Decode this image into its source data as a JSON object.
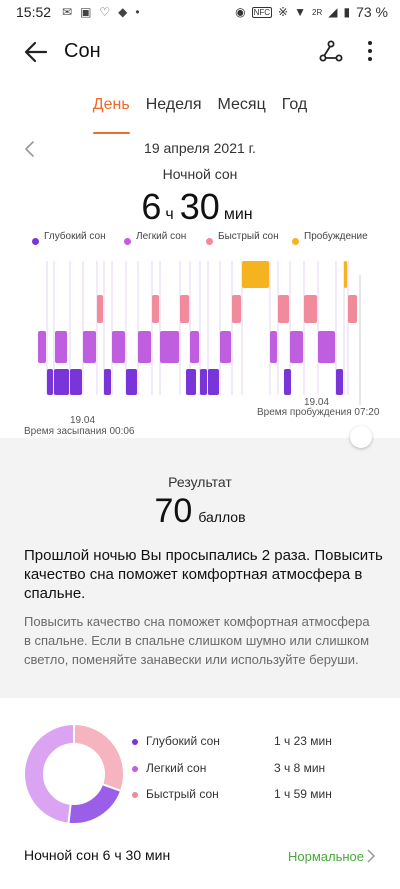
{
  "status_bar": {
    "time": "15:52",
    "battery": "73 %",
    "signal_label": "2R",
    "nfc_label": "NFC"
  },
  "header": {
    "title": "Сон"
  },
  "tabs": [
    {
      "label": "День",
      "active": true
    },
    {
      "label": "Неделя",
      "active": false
    },
    {
      "label": "Месяц",
      "active": false
    },
    {
      "label": "Год",
      "active": false
    }
  ],
  "date": "19 апреля 2021 г.",
  "summary": {
    "title": "Ночной сон",
    "hours": "6",
    "hours_unit": "ч",
    "minutes": "30",
    "minutes_unit": "мин"
  },
  "legend": [
    {
      "label": "Глубокий сон",
      "color": "#7a35d8"
    },
    {
      "label": "Легкий сон",
      "color": "#c05ee0"
    },
    {
      "label": "Быстрый сон",
      "color": "#f18a9a"
    },
    {
      "label": "Пробуждение",
      "color": "#f5b41f"
    }
  ],
  "chart": {
    "start_date": "19.04",
    "start_label": "Время засыпания 00:06",
    "end_date": "19.04",
    "end_label": "Время пробуждения 07:20"
  },
  "score": {
    "title": "Результат",
    "value": "70",
    "unit": "баллов"
  },
  "advice": {
    "bold": "Прошлой ночью Вы просыпались 2 раза. Повысить качество сна поможет комфортная атмосфера в спальне.",
    "text": "Повысить качество сна поможет комфортная атмосфера в спальне. Если в спальне слишком шумно или слишком светло, поменяйте занавески или используйте беруши."
  },
  "stages": [
    {
      "name": "Глубокий сон",
      "value": "1 ч 23 мин",
      "color": "#7a35d8"
    },
    {
      "name": "Легкий сон",
      "value": "3 ч 8 мин",
      "color": "#c05ee0"
    },
    {
      "name": "Быстрый сон",
      "value": "1 ч 59 мин",
      "color": "#f18a9a"
    }
  ],
  "night": {
    "label": "Ночной сон  6 ч 30 мин",
    "status": "Нормальное",
    "status_color": "#48a83a"
  }
}
